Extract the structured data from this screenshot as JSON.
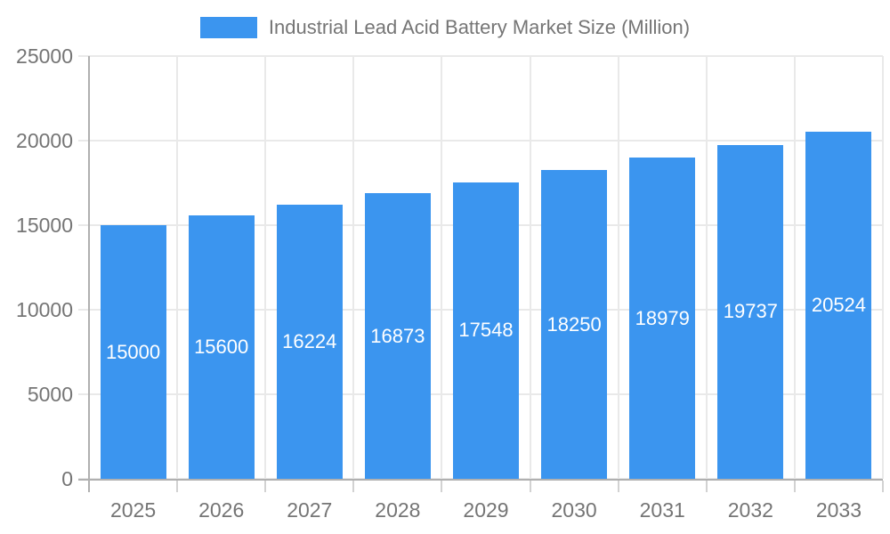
{
  "chart_data": {
    "type": "bar",
    "title": "Industrial Lead Acid Battery Market Size (Million)",
    "legend": {
      "label": "Industrial Lead Acid Battery Market Size (Million)",
      "position": "top"
    },
    "categories": [
      "2025",
      "2026",
      "2027",
      "2028",
      "2029",
      "2030",
      "2031",
      "2032",
      "2033"
    ],
    "values": [
      15000,
      15600,
      16224,
      16873,
      17548,
      18250,
      18979,
      19737,
      20524
    ],
    "series": [
      {
        "name": "Industrial Lead Acid Battery Market Size (Million)",
        "values": [
          15000,
          15600,
          16224,
          16873,
          17548,
          18250,
          18979,
          19737,
          20524
        ]
      }
    ],
    "xlabel": "",
    "ylabel": "",
    "ylim": [
      0,
      25000
    ],
    "yticks": [
      0,
      5000,
      10000,
      15000,
      20000,
      25000
    ],
    "grid": true,
    "value_labels_shown": true,
    "value_label_position": "inside-middle",
    "colors": {
      "bar": "#3b95ef",
      "value_label": "#ffffff",
      "axis_text": "#757575",
      "gridline": "#e9e9e9",
      "tick": "#d2d2d2",
      "axis_line": "#b0b0b0",
      "background": "#ffffff"
    }
  }
}
